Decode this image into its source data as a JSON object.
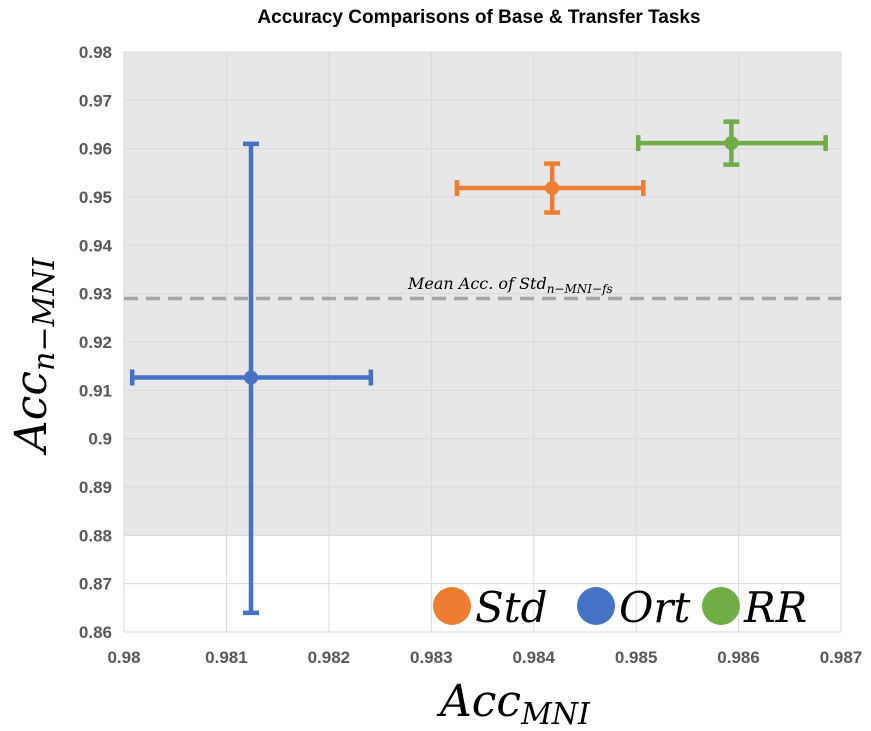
{
  "chart_data": {
    "type": "scatter",
    "title": "Accuracy Comparisons of Base & Transfer Tasks",
    "xlabel": {
      "main": "Acc",
      "sub": "MNI"
    },
    "ylabel": {
      "main": "Acc",
      "sub": "n−MNI"
    },
    "xlim": [
      0.98,
      0.987
    ],
    "ylim": [
      0.86,
      0.98
    ],
    "xticks": [
      "0.98",
      "0.981",
      "0.982",
      "0.983",
      "0.984",
      "0.985",
      "0.986",
      "0.987"
    ],
    "yticks": [
      "0.86",
      "0.87",
      "0.88",
      "0.89",
      "0.9",
      "0.91",
      "0.92",
      "0.93",
      "0.94",
      "0.95",
      "0.96",
      "0.97",
      "0.98"
    ],
    "grid": true,
    "shaded_region": {
      "y_from": 0.8799,
      "y_to": 0.98,
      "color": "#e7e6e8"
    },
    "reference_line": {
      "y": 0.929,
      "label_main": "Mean Acc. of Std",
      "label_sub": "n−MNI−fs",
      "color": "#a6a6a6"
    },
    "series": [
      {
        "name": "Std",
        "color": "#ed7d31",
        "x": 0.98418,
        "y": 0.95185,
        "x_err": [
          0.00093,
          0.00089
        ],
        "y_err": [
          0.00505,
          0.00505
        ]
      },
      {
        "name": "Ort",
        "color": "#4472c4",
        "x": 0.98124,
        "y": 0.91265,
        "x_err": [
          0.00116,
          0.00117
        ],
        "y_err": [
          0.0487,
          0.04835
        ]
      },
      {
        "name": "RR",
        "color": "#70ad47",
        "x": 0.98593,
        "y": 0.96115,
        "x_err": [
          0.00091,
          0.00092
        ],
        "y_err": [
          0.00445,
          0.00445
        ]
      }
    ],
    "legend_position": "bottom-right"
  }
}
